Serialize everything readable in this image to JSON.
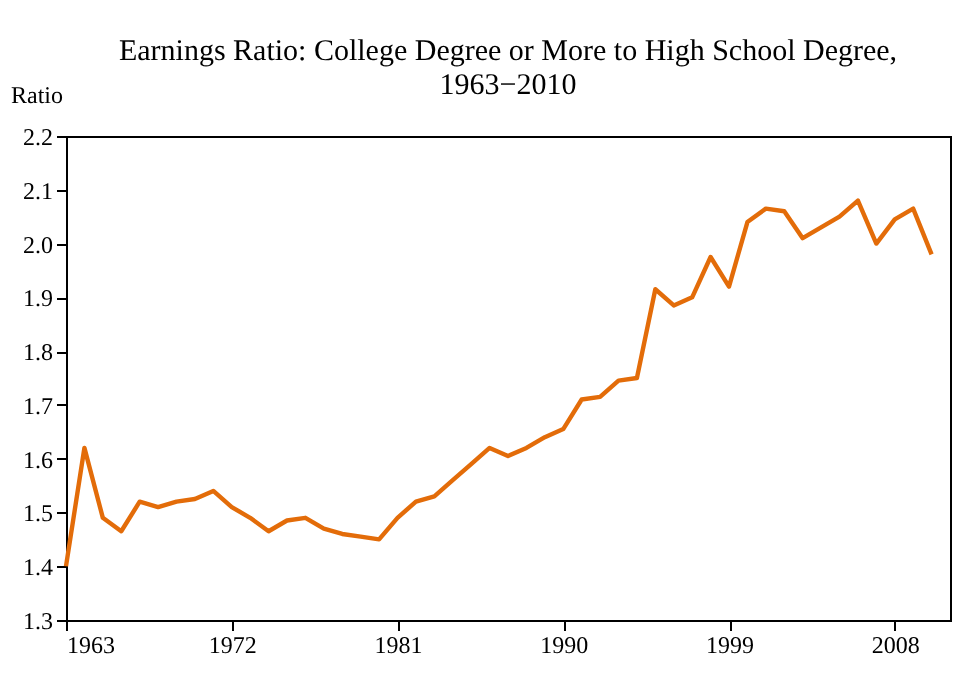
{
  "chart_data": {
    "type": "line",
    "title": "Earnings Ratio: College Degree or More to High School Degree,\n1963−2010",
    "ylabel": "Ratio",
    "x": [
      1963,
      1964,
      1965,
      1966,
      1967,
      1968,
      1969,
      1970,
      1971,
      1972,
      1973,
      1974,
      1975,
      1976,
      1977,
      1978,
      1979,
      1980,
      1981,
      1982,
      1983,
      1984,
      1985,
      1986,
      1987,
      1988,
      1989,
      1990,
      1991,
      1992,
      1993,
      1994,
      1995,
      1996,
      1997,
      1998,
      1999,
      2000,
      2001,
      2002,
      2003,
      2004,
      2005,
      2006,
      2007,
      2008,
      2009,
      2010
    ],
    "series": [
      {
        "color": "#e36c09",
        "values": [
          1.4,
          1.62,
          1.49,
          1.465,
          1.52,
          1.51,
          1.52,
          1.525,
          1.54,
          1.51,
          1.49,
          1.465,
          1.485,
          1.49,
          1.47,
          1.46,
          1.455,
          1.45,
          1.49,
          1.52,
          1.53,
          1.56,
          1.59,
          1.62,
          1.605,
          1.62,
          1.64,
          1.655,
          1.71,
          1.715,
          1.745,
          1.75,
          1.915,
          1.885,
          1.9,
          1.975,
          1.92,
          2.04,
          2.065,
          2.06,
          2.01,
          2.03,
          2.05,
          2.08,
          2.0,
          2.045,
          2.065,
          1.98
        ]
      }
    ],
    "xlim": [
      1963,
      2011
    ],
    "xticks": [
      1963,
      1972,
      1981,
      1990,
      1999,
      2008
    ],
    "ylim": [
      1.3,
      2.2
    ],
    "yticks": [
      1.3,
      1.4,
      1.5,
      1.6,
      1.7,
      1.8,
      1.9,
      {
        "value": 2,
        "label": "2.0"
      },
      2.1,
      2.2
    ],
    "grid": false,
    "marker": "none",
    "line_style": "solid"
  }
}
